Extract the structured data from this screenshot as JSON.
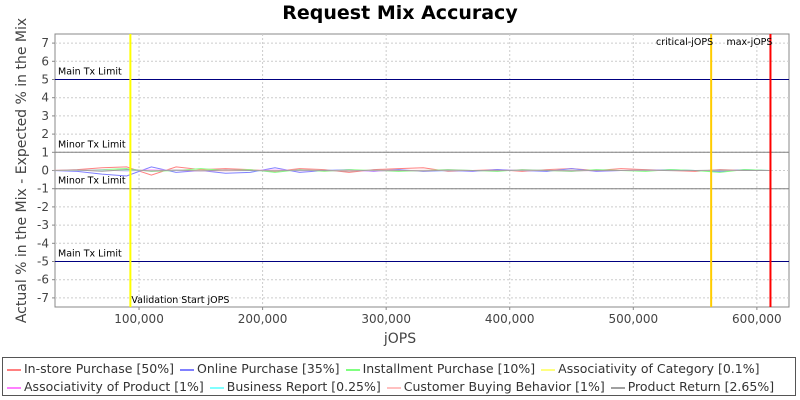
{
  "chart_data": {
    "type": "line",
    "title": "Request Mix Accuracy",
    "xlabel": "jOPS",
    "ylabel": "Actual % in the Mix - Expected % in the Mix",
    "xlim": [
      32000,
      626000
    ],
    "ylim": [
      -7.5,
      7.5
    ],
    "xticks": [
      100000,
      200000,
      300000,
      400000,
      500000,
      600000
    ],
    "xtick_labels": [
      "100,000",
      "200,000",
      "300,000",
      "400,000",
      "500,000",
      "600,000"
    ],
    "yticks": [
      7,
      6,
      5,
      4,
      3,
      2,
      1,
      0,
      -1,
      -2,
      -3,
      -4,
      -5,
      -6,
      -7
    ],
    "grid": true,
    "legend_placement": "bottom",
    "horizontal_markers": [
      {
        "label": "Main Tx Limit",
        "y": 5,
        "color": "#000080"
      },
      {
        "label": "Minor Tx Limit",
        "y": 1,
        "color": "#808080"
      },
      {
        "label": "Minor Tx Limit",
        "y": -1,
        "color": "#808080"
      },
      {
        "label": "Main Tx Limit",
        "y": -5,
        "color": "#000080"
      }
    ],
    "vertical_markers": [
      {
        "label": "Validation Start jOPS",
        "x": 93000,
        "color": "#ffff00"
      },
      {
        "label": "critical-jOPS",
        "x": 563000,
        "color": "#ffcc00"
      },
      {
        "label": "max-jOPS",
        "x": 611000,
        "color": "#ff0000"
      }
    ],
    "x": [
      30000,
      50000,
      70000,
      90000,
      110000,
      130000,
      150000,
      170000,
      190000,
      210000,
      230000,
      250000,
      270000,
      290000,
      310000,
      330000,
      350000,
      370000,
      390000,
      410000,
      430000,
      450000,
      470000,
      490000,
      510000,
      530000,
      550000,
      570000,
      590000,
      610000
    ],
    "series": [
      {
        "name": "In-store Purchase [50%]",
        "color": "#ff8080",
        "values": [
          0,
          0.05,
          0.15,
          0.2,
          -0.25,
          0.2,
          0.05,
          0.1,
          0.05,
          -0.05,
          0.1,
          0.05,
          -0.1,
          0.05,
          0.1,
          0.15,
          -0.05,
          0,
          0.05,
          -0.05,
          0.05,
          0.1,
          0,
          0.1,
          0.05,
          0,
          -0.05,
          0.05,
          0,
          0
        ]
      },
      {
        "name": "Online Purchase [35%]",
        "color": "#8080ff",
        "values": [
          0,
          -0.05,
          -0.2,
          -0.3,
          0.2,
          -0.1,
          0,
          -0.15,
          -0.1,
          0.15,
          -0.1,
          0,
          0.05,
          -0.05,
          0.05,
          -0.05,
          0,
          -0.05,
          0.05,
          0,
          -0.05,
          0.1,
          -0.05,
          0,
          0,
          0.05,
          0,
          -0.05,
          0.05,
          0
        ]
      },
      {
        "name": "Installment Purchase [10%]",
        "color": "#80ff80",
        "values": [
          0,
          0,
          0.05,
          0.1,
          -0.05,
          0,
          0.1,
          0,
          0.05,
          -0.1,
          0.05,
          -0.05,
          0.05,
          0,
          -0.05,
          0,
          0.05,
          0,
          -0.05,
          0.05,
          0,
          -0.05,
          0.05,
          0,
          -0.05,
          0.05,
          0,
          -0.1,
          0.05,
          0
        ]
      },
      {
        "name": "Associativity of Category [0.1%]",
        "color": "#ffff80",
        "values": [
          0,
          0,
          0,
          0.01,
          0,
          0,
          0.01,
          0,
          0,
          0,
          0.01,
          0,
          0,
          0,
          0,
          0.01,
          0,
          0,
          0,
          0,
          0,
          0.01,
          0,
          0,
          0,
          0,
          0,
          0,
          0,
          0
        ]
      },
      {
        "name": "Associativity of Product [1%]",
        "color": "#ff80ff",
        "values": [
          0,
          0.01,
          0.02,
          -0.02,
          0.03,
          0,
          -0.02,
          0.01,
          0,
          0.02,
          -0.01,
          0,
          0.01,
          -0.02,
          0,
          0.01,
          0,
          -0.01,
          0,
          0.01,
          0,
          0,
          -0.01,
          0,
          0.01,
          0,
          0,
          0,
          0,
          0
        ]
      },
      {
        "name": "Business Report [0.25%]",
        "color": "#80ffff",
        "values": [
          0,
          0,
          0.01,
          -0.01,
          0,
          0.01,
          0,
          0,
          -0.01,
          0,
          0,
          0.01,
          0,
          0,
          0,
          0,
          -0.01,
          0,
          0,
          0,
          0.01,
          0,
          0,
          0,
          0,
          0,
          0,
          0,
          0,
          0
        ]
      },
      {
        "name": "Customer Buying Behavior [1%]",
        "color": "#ffc0c0",
        "values": [
          0,
          0.02,
          -0.02,
          0.03,
          -0.01,
          0.02,
          0,
          -0.02,
          0.01,
          0,
          0.02,
          -0.01,
          0,
          0.01,
          0,
          -0.01,
          0.01,
          0,
          0,
          0.01,
          0,
          -0.01,
          0,
          0,
          0.01,
          0,
          0,
          0,
          0,
          0
        ]
      },
      {
        "name": "Product Return [2.65%]",
        "color": "#a0a0a0",
        "values": [
          0,
          0.03,
          -0.04,
          0.05,
          -0.03,
          0.02,
          -0.02,
          0.03,
          0,
          -0.02,
          0.02,
          0,
          -0.03,
          0.02,
          0.01,
          -0.02,
          0.02,
          0,
          -0.01,
          0.02,
          0,
          -0.02,
          0.01,
          0,
          0.02,
          -0.01,
          0,
          0.02,
          0,
          0
        ]
      }
    ]
  }
}
